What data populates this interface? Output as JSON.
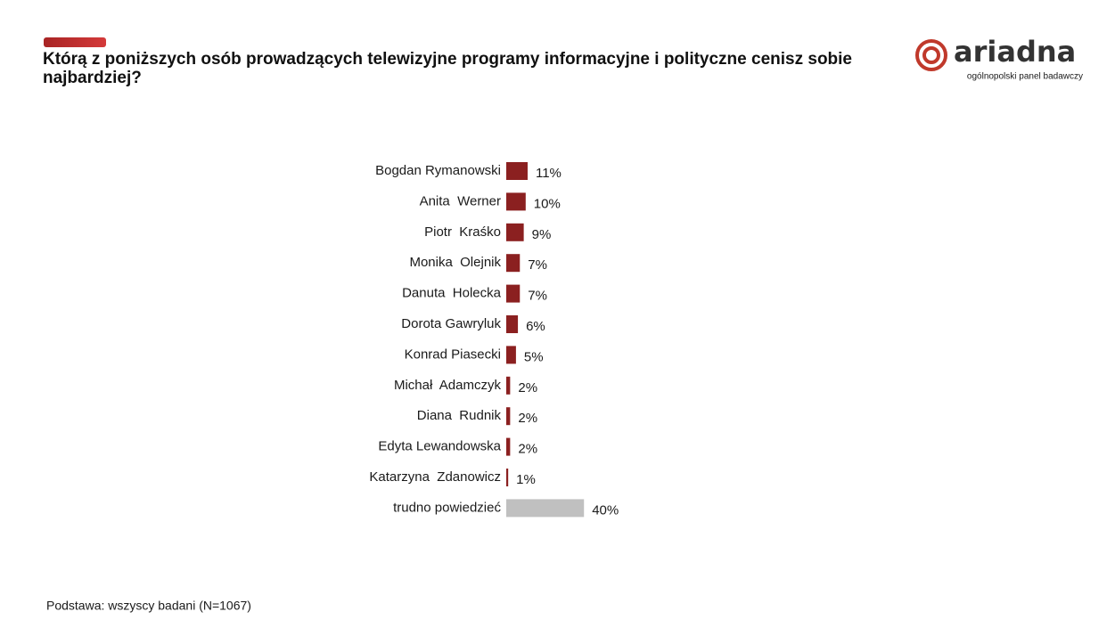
{
  "chart_data": {
    "type": "bar",
    "title": "Którą z poniższych osób prowadzących telewizyjne programy informacyjne i polityczne cenisz sobie najbardziej?",
    "categories": [
      "Bogdan Rymanowski",
      "Anita  Werner",
      "Piotr  Kraśko",
      "Monika  Olejnik",
      "Danuta  Holecka",
      "Dorota Gawryluk",
      "Konrad Piasecki",
      "Michał  Adamczyk",
      "Diana  Rudnik",
      "Edyta Lewandowska",
      "Katarzyna  Zdanowicz",
      "trudno powiedzieć"
    ],
    "values": [
      11,
      10,
      9,
      7,
      7,
      6,
      5,
      2,
      2,
      2,
      1,
      40
    ],
    "value_labels": [
      "11%",
      "10%",
      "9%",
      "7%",
      "7%",
      "6%",
      "5%",
      "2%",
      "2%",
      "2%",
      "1%",
      "40%"
    ],
    "colors": [
      "#8b2020",
      "#8b2020",
      "#8b2020",
      "#8b2020",
      "#8b2020",
      "#8b2020",
      "#8b2020",
      "#8b2020",
      "#8b2020",
      "#8b2020",
      "#8b2020",
      "#c0c0c0"
    ],
    "note": "Podstawa: wszyscy badani (N=1067)"
  },
  "logo": {
    "name": "ariadna",
    "tagline": "ogólnopolski panel badawczy"
  }
}
